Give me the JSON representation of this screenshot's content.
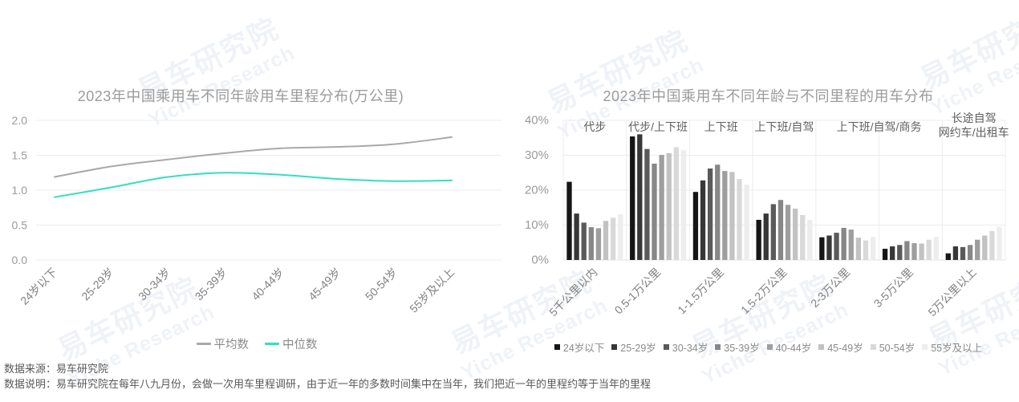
{
  "watermark": {
    "line1": "易车研究院",
    "line2": "Yiche Research"
  },
  "chart_data": [
    {
      "type": "line",
      "title": "2023年中国乘用车不同年龄用车里程分布(万公里)",
      "categories": [
        "24岁以下",
        "25-29岁",
        "30-34岁",
        "35-39岁",
        "40-44岁",
        "45-49岁",
        "50-54岁",
        "55岁及以上"
      ],
      "series": [
        {
          "name": "平均数",
          "color": "#a9a9a9",
          "values": [
            1.19,
            1.34,
            1.44,
            1.53,
            1.6,
            1.62,
            1.66,
            1.76
          ]
        },
        {
          "name": "中位数",
          "color": "#31dfc0",
          "values": [
            0.9,
            1.04,
            1.19,
            1.25,
            1.22,
            1.16,
            1.13,
            1.14
          ]
        }
      ],
      "ylim": [
        0,
        2.0
      ],
      "yticks": [
        "0.0",
        "0.5",
        "1.0",
        "1.5",
        "2.0"
      ],
      "grid": "horizontal",
      "legend_position": "bottom",
      "smooth": true
    },
    {
      "type": "bar",
      "title": "2023年中国乘用车不同年龄与不同里程的用车分布",
      "categories": [
        "5千公里以内",
        "0.5-1万公里",
        "1-1.5万公里",
        "1.5-2万公里",
        "2-3万公里",
        "3-5万公里",
        "5万公里以上"
      ],
      "series": [
        {
          "name": "24岁以下",
          "color": "#161616",
          "values": [
            22.4,
            35.4,
            19.5,
            11.5,
            6.5,
            3.2,
            1.9
          ]
        },
        {
          "name": "25-29岁",
          "color": "#373737",
          "values": [
            13.3,
            36.0,
            22.8,
            13.3,
            7.0,
            3.9,
            3.9
          ]
        },
        {
          "name": "30-34岁",
          "color": "#5a5a5a",
          "values": [
            10.7,
            31.8,
            26.2,
            16.0,
            7.8,
            4.3,
            3.7
          ]
        },
        {
          "name": "35-39岁",
          "color": "#878787",
          "values": [
            9.4,
            27.6,
            27.3,
            17.2,
            9.2,
            5.4,
            4.3
          ]
        },
        {
          "name": "40-44岁",
          "color": "#9e9e9e",
          "values": [
            9.1,
            30.1,
            25.5,
            15.8,
            8.7,
            4.8,
            5.8
          ]
        },
        {
          "name": "45-49岁",
          "color": "#c2c2c2",
          "values": [
            11.2,
            30.6,
            25.2,
            14.7,
            6.4,
            4.7,
            7.0
          ]
        },
        {
          "name": "50-54岁",
          "color": "#d9d9d9",
          "values": [
            12.1,
            32.3,
            23.2,
            12.9,
            5.6,
            5.8,
            8.3
          ]
        },
        {
          "name": "55岁及以上",
          "color": "#ededed",
          "values": [
            13.1,
            31.5,
            21.6,
            11.5,
            6.6,
            6.6,
            9.4
          ]
        }
      ],
      "annotations": [
        {
          "text": "代步",
          "at": 0.5,
          "dy": 0
        },
        {
          "text": "代步/上下班",
          "at": 1.5,
          "dy": 0
        },
        {
          "text": "上下班",
          "at": 2.5,
          "dy": 0
        },
        {
          "text": "上下班/自驾",
          "at": 3.5,
          "dy": 0
        },
        {
          "text": "上下班/自驾/商务",
          "at": 5.0,
          "dy": 0
        },
        {
          "text": "长途自驾",
          "at": 6.5,
          "dy": -11
        },
        {
          "text": "网约车/出租车",
          "at": 6.5,
          "dy": 7
        }
      ],
      "ylim": [
        0,
        40
      ],
      "yticks": [
        "0%",
        "10%",
        "20%",
        "30%",
        "40%"
      ],
      "grid": "full",
      "legend_position": "bottom"
    }
  ],
  "footer": {
    "source": "数据来源：易车研究院",
    "note": "数据说明：易车研究院在每年八九月份，会做一次用车里程调研，由于近一年的多数时间集中在当年，我们把近一年的里程约等于当年的里程"
  }
}
